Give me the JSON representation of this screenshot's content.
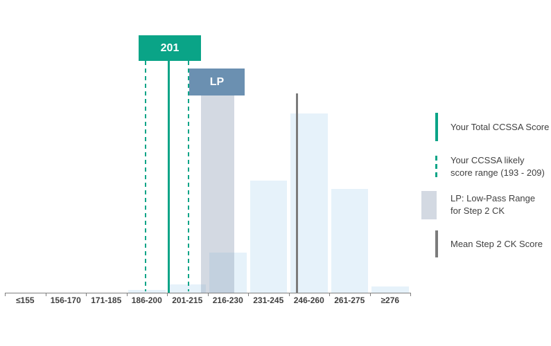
{
  "chart_data": {
    "type": "bar",
    "title": "",
    "xlabel": "",
    "ylabel": "",
    "grid": false,
    "legend_position": "right",
    "categories": [
      "≤155",
      "156-170",
      "171-185",
      "186-200",
      "201-215",
      "216-230",
      "231-245",
      "246-260",
      "261-275",
      "≥276"
    ],
    "values_pct_estimated": [
      0,
      0,
      0,
      0.6,
      1.8,
      8.9,
      24.8,
      39.6,
      22.9,
      1.4
    ],
    "markers": {
      "total_score_label": "201",
      "total_score": 201,
      "likely_range_low": 193,
      "likely_range_high": 209,
      "lp_label": "LP",
      "mean_line_bin": "246-260"
    },
    "legend": {
      "total": {
        "label": "Your Total CCSSA Score"
      },
      "range": {
        "line1": "Your CCSSA likely",
        "line2": "score range (193 - 209)"
      },
      "lp": {
        "line1": "LP: Low-Pass Range",
        "line2": "for Step 2 CK"
      },
      "mean": {
        "label": "Mean Step 2 CK Score"
      }
    },
    "colors": {
      "bar": "#e6f2fa",
      "accent_green": "#0aa487",
      "lp_box_blue": "#6b90b1",
      "lp_band_gray": "#d3d9e2",
      "mean_gray": "#7b7b7b",
      "text": "#3f3f3f"
    }
  }
}
